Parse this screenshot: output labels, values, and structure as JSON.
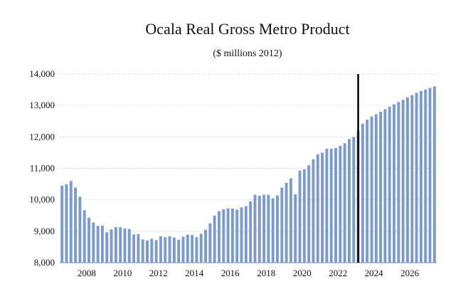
{
  "chart_data": {
    "type": "bar",
    "title": "Ocala Real Gross Metro Product",
    "subtitle": "($ millions 2012)",
    "xlabel": "",
    "ylabel": "",
    "ylim": [
      8000,
      14000
    ],
    "y_ticks": [
      "8,000",
      "9,000",
      "10,000",
      "11,000",
      "12,000",
      "13,000",
      "14,000"
    ],
    "x_tick_labels": [
      "2008",
      "2010",
      "2012",
      "2014",
      "2016",
      "2018",
      "2020",
      "2022",
      "2024",
      "2026"
    ],
    "x_start": "2007Q1",
    "frequency": "quarterly",
    "grid": true,
    "bar_color": "#7b9bd0",
    "forecast_line_color": "#000000",
    "forecast_start": "2023Q3",
    "series": [
      {
        "values": [
          10450,
          10500,
          10600,
          10390,
          10100,
          9670,
          9430,
          9280,
          9170,
          9180,
          8970,
          9060,
          9130,
          9130,
          9090,
          9070,
          8900,
          8910,
          8740,
          8710,
          8760,
          8720,
          8840,
          8810,
          8840,
          8800,
          8730,
          8830,
          8890,
          8880,
          8810,
          8920,
          9050,
          9250,
          9500,
          9640,
          9700,
          9730,
          9720,
          9690,
          9760,
          9800,
          9950,
          10160,
          10130,
          10160,
          10160,
          10050,
          10140,
          10390,
          10540,
          10680,
          10180,
          10930,
          10970,
          11100,
          11290,
          11450,
          11500,
          11620,
          11620,
          11650,
          11720,
          11800,
          11930,
          12000,
          12200,
          12420,
          12550,
          12650,
          12720,
          12800,
          12880,
          12960,
          13040,
          13110,
          13180,
          13260,
          13330,
          13400,
          13460,
          13510,
          13560,
          13610
        ]
      }
    ]
  }
}
